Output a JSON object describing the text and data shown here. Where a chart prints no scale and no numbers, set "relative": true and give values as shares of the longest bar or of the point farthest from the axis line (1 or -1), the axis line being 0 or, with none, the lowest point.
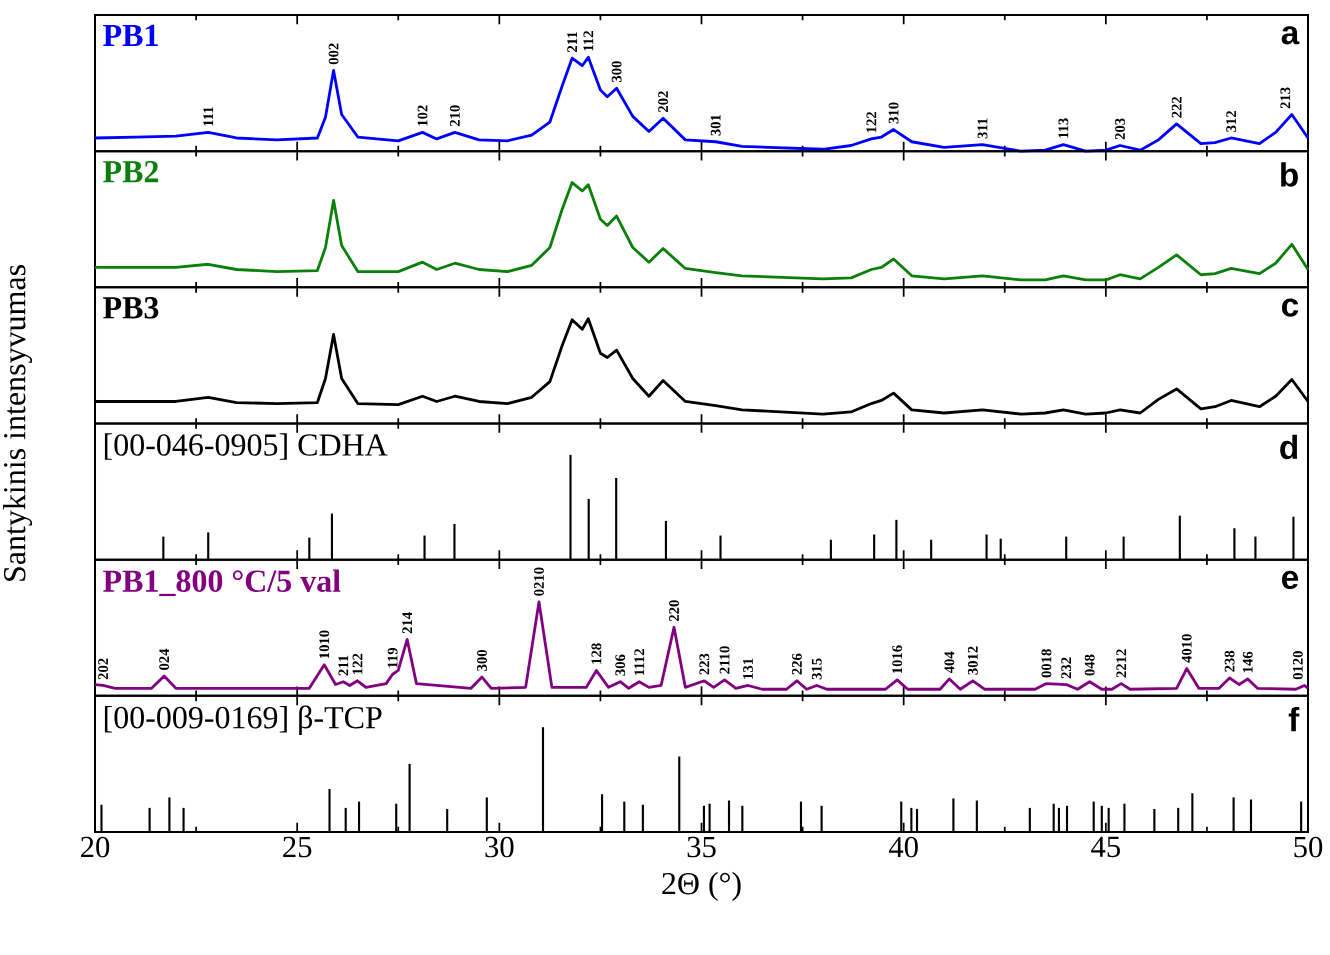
{
  "chart_data": [
    {
      "type": "line",
      "relative": true,
      "xlim": [
        20,
        50
      ],
      "xticks": [
        20,
        25,
        30,
        35,
        40,
        45,
        50
      ],
      "tick_labels": false,
      "x": [
        20,
        21,
        22,
        22.8,
        23.5,
        24.5,
        25.5,
        25.7,
        25.9,
        26.1,
        26.5,
        27.5,
        28.1,
        28.45,
        28.9,
        29.5,
        30.2,
        30.8,
        31.25,
        31.55,
        31.8,
        32.05,
        32.2,
        32.5,
        32.67,
        32.9,
        33.3,
        33.7,
        34.05,
        34.6,
        35.35,
        36,
        38,
        38.7,
        39.2,
        39.45,
        39.75,
        40.2,
        41,
        41.95,
        42.9,
        43.5,
        43.95,
        44.5,
        45,
        45.35,
        45.85,
        46.3,
        46.75,
        47.35,
        47.7,
        48.1,
        48.8,
        49.2,
        49.6,
        50
      ],
      "series": [
        {
          "name": "PB1",
          "color": "#0000ff",
          "values": [
            0.14,
            0.15,
            0.16,
            0.2,
            0.14,
            0.12,
            0.14,
            0.36,
            0.86,
            0.39,
            0.15,
            0.11,
            0.2,
            0.13,
            0.2,
            0.12,
            0.11,
            0.17,
            0.31,
            0.69,
            0.99,
            0.91,
            1.0,
            0.65,
            0.58,
            0.67,
            0.37,
            0.21,
            0.35,
            0.12,
            0.1,
            0.05,
            0.02,
            0.06,
            0.13,
            0.15,
            0.23,
            0.1,
            0.04,
            0.07,
            0.0,
            0.01,
            0.07,
            0.0,
            0.01,
            0.06,
            0.01,
            0.12,
            0.29,
            0.08,
            0.09,
            0.14,
            0.08,
            0.2,
            0.39,
            0.14
          ]
        }
      ],
      "annotations": [
        "a",
        {
          "text": "111",
          "x": 22.8,
          "y": 0.2
        },
        {
          "text": "002",
          "x": 25.9,
          "y": 0.86
        },
        {
          "text": "102",
          "x": 28.1,
          "y": 0.2
        },
        {
          "text": "210",
          "x": 28.9,
          "y": 0.2
        },
        {
          "text": "211",
          "x": 31.8,
          "y": 0.99
        },
        {
          "text": "112",
          "x": 32.2,
          "y": 1.0
        },
        {
          "text": "300",
          "x": 32.9,
          "y": 0.67
        },
        {
          "text": "202",
          "x": 34.05,
          "y": 0.35
        },
        {
          "text": "301",
          "x": 35.35,
          "y": 0.1
        },
        {
          "text": "122",
          "x": 39.2,
          "y": 0.13
        },
        {
          "text": "310",
          "x": 39.75,
          "y": 0.23
        },
        {
          "text": "311",
          "x": 41.95,
          "y": 0.07
        },
        {
          "text": "113",
          "x": 43.95,
          "y": 0.07
        },
        {
          "text": "203",
          "x": 45.35,
          "y": 0.06
        },
        {
          "text": "222",
          "x": 46.75,
          "y": 0.29
        },
        {
          "text": "312",
          "x": 48.1,
          "y": 0.14
        },
        {
          "text": "213",
          "x": 49.6,
          "y": 0.39
        }
      ]
    },
    {
      "type": "line",
      "relative": true,
      "xlim": [
        20,
        50
      ],
      "xticks": [
        20,
        25,
        30,
        35,
        40,
        45,
        50
      ],
      "tick_labels": false,
      "x": [
        20,
        21,
        22,
        22.8,
        23.5,
        24.5,
        25.5,
        25.7,
        25.9,
        26.1,
        26.5,
        27.5,
        28.1,
        28.45,
        28.9,
        29.5,
        30.2,
        30.8,
        31.25,
        31.55,
        31.8,
        32.05,
        32.2,
        32.5,
        32.67,
        32.9,
        33.3,
        33.7,
        34.05,
        34.6,
        35.35,
        36,
        38,
        38.7,
        39.2,
        39.45,
        39.75,
        40.2,
        41,
        41.95,
        42.9,
        43.5,
        43.95,
        44.5,
        45,
        45.35,
        45.85,
        46.3,
        46.75,
        47.35,
        47.7,
        48.1,
        48.8,
        49.2,
        49.6,
        50
      ],
      "series": [
        {
          "name": "PB2",
          "color": "#0a800a",
          "values": [
            0.19,
            0.19,
            0.19,
            0.22,
            0.17,
            0.15,
            0.16,
            0.38,
            0.83,
            0.4,
            0.15,
            0.15,
            0.24,
            0.17,
            0.23,
            0.17,
            0.15,
            0.21,
            0.38,
            0.74,
            1.0,
            0.92,
            0.98,
            0.65,
            0.59,
            0.68,
            0.38,
            0.24,
            0.37,
            0.18,
            0.14,
            0.11,
            0.08,
            0.09,
            0.17,
            0.19,
            0.27,
            0.11,
            0.08,
            0.11,
            0.07,
            0.07,
            0.11,
            0.07,
            0.07,
            0.12,
            0.08,
            0.19,
            0.31,
            0.12,
            0.13,
            0.18,
            0.13,
            0.23,
            0.41,
            0.17
          ]
        }
      ],
      "annotations": [
        "b"
      ]
    },
    {
      "type": "line",
      "relative": true,
      "xlim": [
        20,
        50
      ],
      "xticks": [
        20,
        25,
        30,
        35,
        40,
        45,
        50
      ],
      "tick_labels": false,
      "x": [
        20,
        21,
        22,
        22.8,
        23.5,
        24.5,
        25.5,
        25.7,
        25.9,
        26.1,
        26.5,
        27.5,
        28.1,
        28.45,
        28.9,
        29.5,
        30.2,
        30.8,
        31.25,
        31.55,
        31.8,
        32.05,
        32.2,
        32.5,
        32.67,
        32.9,
        33.3,
        33.7,
        34.05,
        34.6,
        35.35,
        36,
        38,
        38.7,
        39.2,
        39.45,
        39.75,
        40.2,
        41,
        41.95,
        42.9,
        43.5,
        43.95,
        44.5,
        45,
        45.35,
        45.85,
        46.3,
        46.75,
        47.35,
        47.7,
        48.1,
        48.8,
        49.2,
        49.6,
        50
      ],
      "series": [
        {
          "name": "PB3",
          "color": "#000000",
          "values": [
            0.21,
            0.21,
            0.21,
            0.25,
            0.2,
            0.19,
            0.2,
            0.43,
            0.85,
            0.43,
            0.19,
            0.18,
            0.26,
            0.21,
            0.26,
            0.21,
            0.19,
            0.25,
            0.4,
            0.74,
            0.99,
            0.9,
            1.0,
            0.67,
            0.63,
            0.7,
            0.43,
            0.26,
            0.41,
            0.21,
            0.17,
            0.13,
            0.09,
            0.11,
            0.19,
            0.22,
            0.29,
            0.13,
            0.1,
            0.13,
            0.09,
            0.1,
            0.13,
            0.09,
            0.1,
            0.13,
            0.1,
            0.23,
            0.33,
            0.14,
            0.16,
            0.22,
            0.16,
            0.26,
            0.42,
            0.21
          ]
        }
      ],
      "annotations": [
        "c"
      ]
    },
    {
      "type": "bar",
      "relative": true,
      "xlim": [
        20,
        50
      ],
      "xticks": [
        20,
        25,
        30,
        35,
        40,
        45,
        50
      ],
      "tick_labels": false,
      "ylabel": "Santykinis intensyvumas",
      "x": [
        21.69,
        22.8,
        25.3,
        25.86,
        28.15,
        28.89,
        31.76,
        32.21,
        32.89,
        34.12,
        35.47,
        38.2,
        39.27,
        39.82,
        40.68,
        42.05,
        42.4,
        44.02,
        45.44,
        46.83,
        48.18,
        48.7,
        49.64
      ],
      "series": [
        {
          "name": "[00-046-0905] CDHA",
          "color": "#000000",
          "values": [
            0.22,
            0.26,
            0.21,
            0.44,
            0.23,
            0.34,
            1.0,
            0.58,
            0.78,
            0.37,
            0.23,
            0.19,
            0.24,
            0.38,
            0.19,
            0.24,
            0.2,
            0.22,
            0.22,
            0.42,
            0.3,
            0.22,
            0.41
          ]
        }
      ],
      "annotations": [
        "d"
      ]
    },
    {
      "type": "line",
      "relative": true,
      "xlim": [
        20,
        50
      ],
      "xticks": [
        20,
        25,
        30,
        35,
        40,
        45,
        50
      ],
      "tick_labels": false,
      "x": [
        20,
        20.2,
        20.5,
        21.4,
        21.71,
        22.0,
        25.3,
        25.67,
        25.95,
        26.14,
        26.3,
        26.49,
        26.7,
        27.2,
        27.36,
        27.5,
        27.72,
        27.95,
        29.3,
        29.57,
        29.8,
        30.65,
        30.98,
        31.3,
        32.15,
        32.4,
        32.7,
        32.99,
        33.2,
        33.46,
        33.7,
        34.0,
        34.32,
        34.6,
        35.07,
        35.3,
        35.57,
        35.85,
        36.15,
        36.5,
        37.1,
        37.36,
        37.6,
        37.85,
        38.1,
        39.55,
        39.84,
        40.1,
        40.9,
        41.13,
        41.4,
        41.71,
        42,
        43.25,
        43.53,
        44.02,
        44.3,
        44.6,
        44.9,
        45.15,
        45.38,
        45.6,
        46.75,
        47.0,
        47.3,
        47.8,
        48.06,
        48.3,
        48.51,
        48.75,
        49.7,
        49.91,
        50
      ],
      "series": [
        {
          "name": "PB1_800 °C/5 val",
          "color": "#800080",
          "values": [
            0.12,
            0.11,
            0.08,
            0.08,
            0.21,
            0.08,
            0.08,
            0.33,
            0.12,
            0.15,
            0.11,
            0.16,
            0.09,
            0.13,
            0.23,
            0.27,
            0.6,
            0.13,
            0.08,
            0.2,
            0.08,
            0.09,
            1.0,
            0.09,
            0.09,
            0.27,
            0.09,
            0.15,
            0.08,
            0.15,
            0.09,
            0.11,
            0.73,
            0.09,
            0.16,
            0.09,
            0.17,
            0.08,
            0.11,
            0.07,
            0.07,
            0.16,
            0.07,
            0.11,
            0.07,
            0.07,
            0.17,
            0.07,
            0.07,
            0.18,
            0.07,
            0.16,
            0.07,
            0.07,
            0.13,
            0.12,
            0.07,
            0.15,
            0.07,
            0.07,
            0.13,
            0.07,
            0.08,
            0.29,
            0.08,
            0.08,
            0.19,
            0.12,
            0.18,
            0.08,
            0.07,
            0.11,
            0.08
          ]
        }
      ],
      "annotations": [
        "e",
        {
          "text": "202",
          "x": 20.2,
          "y": 0.11
        },
        {
          "text": "024",
          "x": 21.71,
          "y": 0.21
        },
        {
          "text": "1010",
          "x": 25.67,
          "y": 0.33
        },
        {
          "text": "211",
          "x": 26.14,
          "y": 0.15
        },
        {
          "text": "122",
          "x": 26.49,
          "y": 0.16
        },
        {
          "text": "119",
          "x": 27.36,
          "y": 0.23
        },
        {
          "text": "214",
          "x": 27.72,
          "y": 0.6
        },
        {
          "text": "300",
          "x": 29.57,
          "y": 0.2
        },
        {
          "text": "0210",
          "x": 30.98,
          "y": 1.0
        },
        {
          "text": "128",
          "x": 32.4,
          "y": 0.27
        },
        {
          "text": "306",
          "x": 32.99,
          "y": 0.15
        },
        {
          "text": "1112",
          "x": 33.46,
          "y": 0.15
        },
        {
          "text": "220",
          "x": 34.32,
          "y": 0.73
        },
        {
          "text": "223",
          "x": 35.07,
          "y": 0.16
        },
        {
          "text": "2110",
          "x": 35.57,
          "y": 0.17
        },
        {
          "text": "131",
          "x": 36.15,
          "y": 0.11
        },
        {
          "text": "226",
          "x": 37.36,
          "y": 0.16
        },
        {
          "text": "315",
          "x": 37.85,
          "y": 0.11
        },
        {
          "text": "1016",
          "x": 39.84,
          "y": 0.17
        },
        {
          "text": "404",
          "x": 41.13,
          "y": 0.18
        },
        {
          "text": "3012",
          "x": 41.71,
          "y": 0.16
        },
        {
          "text": "0018",
          "x": 43.53,
          "y": 0.13
        },
        {
          "text": "232",
          "x": 44.02,
          "y": 0.12
        },
        {
          "text": "048",
          "x": 44.6,
          "y": 0.15
        },
        {
          "text": "2212",
          "x": 45.38,
          "y": 0.13
        },
        {
          "text": "4010",
          "x": 47.0,
          "y": 0.29
        },
        {
          "text": "238",
          "x": 48.06,
          "y": 0.19
        },
        {
          "text": "146",
          "x": 48.51,
          "y": 0.18
        },
        {
          "text": "0120",
          "x": 49.91,
          "y": 0.11
        }
      ]
    },
    {
      "type": "bar",
      "relative": true,
      "xlim": [
        20,
        50
      ],
      "xticks": [
        20,
        25,
        30,
        35,
        40,
        45,
        50
      ],
      "tick_labels": "x",
      "xlabel": "2Θ (°)",
      "x": [
        20.16,
        21.35,
        21.84,
        22.19,
        25.8,
        26.2,
        26.53,
        27.45,
        27.78,
        28.71,
        29.69,
        31.08,
        32.54,
        33.09,
        33.55,
        34.45,
        35.06,
        35.2,
        35.68,
        36.01,
        37.46,
        37.97,
        39.94,
        40.19,
        40.33,
        41.23,
        41.81,
        43.12,
        43.71,
        43.84,
        44.04,
        44.7,
        44.9,
        45.07,
        45.46,
        46.2,
        46.79,
        47.14,
        48.16,
        48.59,
        49.83
      ],
      "series": [
        {
          "name": "[00-009-0169] β-TCP",
          "color": "#000000",
          "values": [
            0.26,
            0.23,
            0.33,
            0.23,
            0.41,
            0.23,
            0.29,
            0.27,
            0.65,
            0.22,
            0.33,
            1.0,
            0.36,
            0.29,
            0.26,
            0.72,
            0.25,
            0.27,
            0.3,
            0.25,
            0.29,
            0.25,
            0.29,
            0.23,
            0.22,
            0.32,
            0.3,
            0.23,
            0.27,
            0.23,
            0.25,
            0.29,
            0.25,
            0.23,
            0.27,
            0.22,
            0.23,
            0.37,
            0.33,
            0.31,
            0.29
          ]
        }
      ],
      "annotations": [
        "f"
      ]
    }
  ]
}
